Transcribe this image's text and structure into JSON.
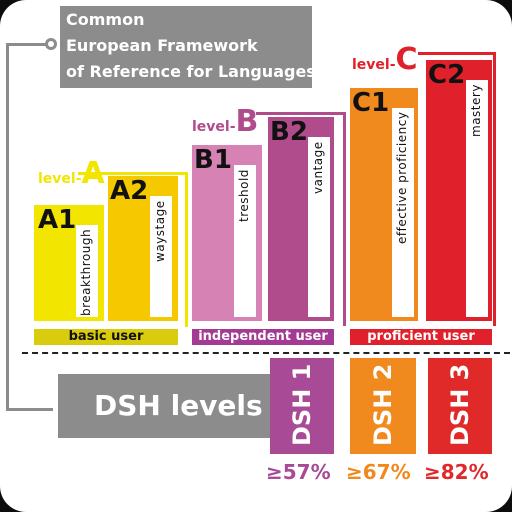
{
  "title": {
    "line1": "Common",
    "line2": "European Framework",
    "line3": "of Reference for Languages"
  },
  "levels": {
    "a": {
      "prefix": "level-",
      "letter": "A"
    },
    "b": {
      "prefix": "level-",
      "letter": "B"
    },
    "c": {
      "prefix": "level-",
      "letter": "C"
    }
  },
  "bars": [
    {
      "code": "A1",
      "label": "breakthrough"
    },
    {
      "code": "A2",
      "label": "waystage"
    },
    {
      "code": "B1",
      "label": "treshold"
    },
    {
      "code": "B2",
      "label": "vantage"
    },
    {
      "code": "C1",
      "label": "effective proficiency"
    },
    {
      "code": "C2",
      "label": "mastery"
    }
  ],
  "groups": [
    "basic user",
    "independent user",
    "proficient user"
  ],
  "dsh": {
    "label": "DSH levels",
    "tabs": [
      "DSH 1",
      "DSH 2",
      "DSH 3"
    ],
    "thresholds": [
      "≥57%",
      "≥67%",
      "≥82%"
    ]
  },
  "colors": {
    "gray": "#8c8c8c",
    "yellow": "#f2e600",
    "yellow_dark": "#f5c800",
    "band_yellow": "#d9cc0f",
    "magenta_light": "#d782b4",
    "magenta": "#b04c8c",
    "band_magenta": "#a33a93",
    "orange": "#f08a1e",
    "red": "#e0202a",
    "band_red": "#e0202a",
    "dsh1": "#a84a96",
    "dsh2": "#f08a1e",
    "dsh3": "#e02a2a"
  }
}
